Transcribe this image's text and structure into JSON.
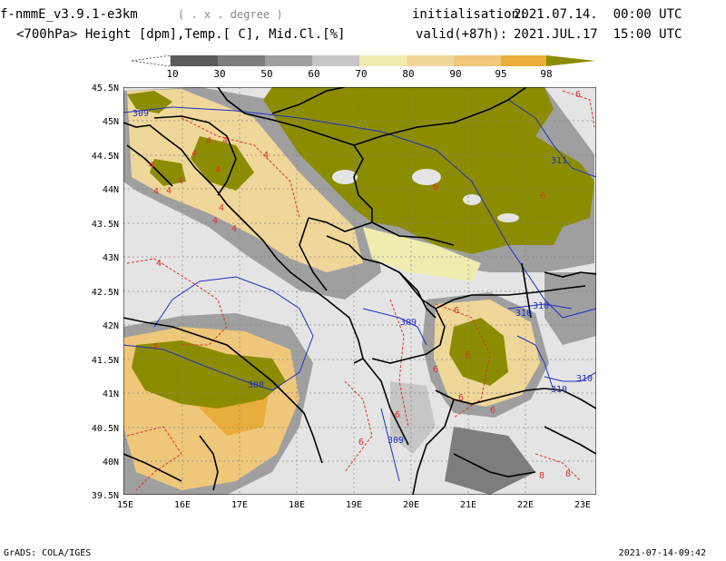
{
  "header": {
    "model": "f-nmmE_v3.9.1-e3km",
    "units": "( . x . degree )",
    "variables": "<700hPa> Height [dpm],Temp.[ C], Mid.Cl.[%]",
    "init_label": "initialisation:",
    "init_value": "2021.07.14.  00:00 UTC",
    "valid_label": "valid(+87h):",
    "valid_value": "2021.JUL.17  15:00 UTC"
  },
  "colorbar": {
    "labels": [
      "10",
      "30",
      "50",
      "60",
      "70",
      "80",
      "90",
      "95",
      "98"
    ],
    "colors": [
      "#5a5a5a",
      "#7d7d7d",
      "#9f9f9f",
      "#c6c6c6",
      "#f0ecb0",
      "#efd79a",
      "#eec77a",
      "#e8ad3a",
      "#8c8c00"
    ]
  },
  "map": {
    "lat_labels": [
      "45.5N",
      "45N",
      "44.5N",
      "44N",
      "43.5N",
      "43N",
      "42.5N",
      "42N",
      "41.5N",
      "41N",
      "40.5N",
      "40N",
      "39.5N"
    ],
    "lon_labels": [
      "15E",
      "16E",
      "17E",
      "18E",
      "19E",
      "20E",
      "21E",
      "22E",
      "23E"
    ],
    "height_labels": [
      "309",
      "311",
      "309",
      "310",
      "310",
      "308",
      "309",
      "310",
      "310"
    ],
    "temp_labels": [
      "4",
      "4",
      "4",
      "4",
      "4",
      "4",
      "4",
      "4",
      "4",
      "4",
      "4",
      "4",
      "4",
      "4",
      "6",
      "6",
      "6",
      "6",
      "6",
      "6",
      "6",
      "6",
      "6",
      "6",
      "8",
      "8"
    ],
    "colors": {
      "background": "#e4e4e4",
      "cloud_top": "#8c8c00",
      "height_contour": "#2030c0",
      "temp_contour": "#e03030",
      "border": "#000000"
    }
  },
  "footer": {
    "left": "GrADS: COLA/IGES",
    "right": "2021-07-14-09:42"
  }
}
